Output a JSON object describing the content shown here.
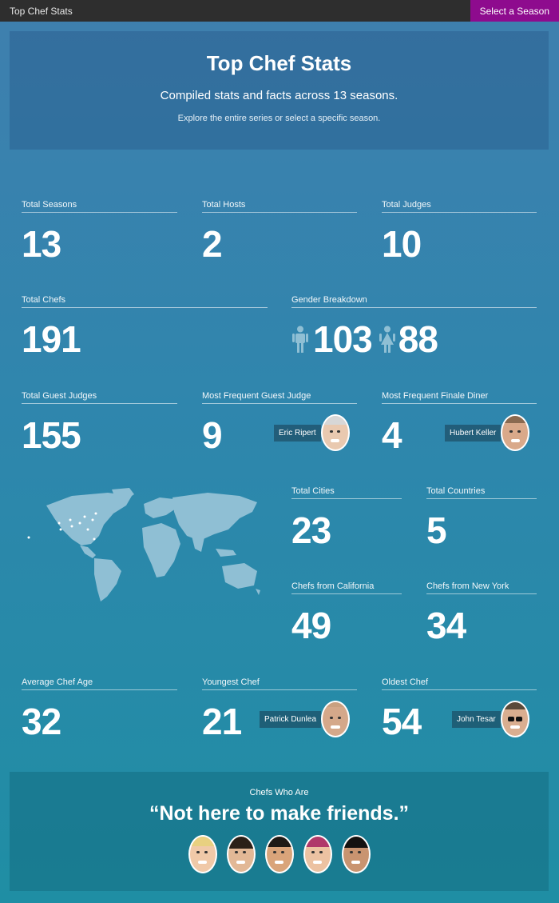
{
  "topbar": {
    "title": "Top Chef Stats",
    "season_button": "Select a Season"
  },
  "hero": {
    "title": "Top Chef Stats",
    "subtitle": "Compiled stats and facts across 13 seasons.",
    "description": "Explore the entire series or select a specific season."
  },
  "stats": {
    "total_seasons": {
      "label": "Total Seasons",
      "value": "13"
    },
    "total_hosts": {
      "label": "Total Hosts",
      "value": "2"
    },
    "total_judges": {
      "label": "Total Judges",
      "value": "10"
    },
    "total_chefs": {
      "label": "Total Chefs",
      "value": "191"
    },
    "gender": {
      "label": "Gender Breakdown",
      "male": "103",
      "female": "88"
    },
    "guest_judges": {
      "label": "Total Guest Judges",
      "value": "155"
    },
    "frequent_guest_judge": {
      "label": "Most Frequent Guest Judge",
      "value": "9",
      "name": "Eric Ripert"
    },
    "frequent_finale_diner": {
      "label": "Most Frequent Finale Diner",
      "value": "4",
      "name": "Hubert Keller"
    },
    "total_cities": {
      "label": "Total Cities",
      "value": "23"
    },
    "total_countries": {
      "label": "Total Countries",
      "value": "5"
    },
    "chefs_california": {
      "label": "Chefs from California",
      "value": "49"
    },
    "chefs_new_york": {
      "label": "Chefs from New York",
      "value": "34"
    },
    "average_age": {
      "label": "Average Chef Age",
      "value": "32"
    },
    "youngest_chef": {
      "label": "Youngest Chef",
      "value": "21",
      "name": "Patrick Dunlea"
    },
    "oldest_chef": {
      "label": "Oldest Chef",
      "value": "54",
      "name": "John Tesar"
    }
  },
  "friends": {
    "heading": "Chefs Who Are",
    "quote": "“Not here to make friends.”"
  },
  "colors": {
    "accent": "#8e0b8e",
    "topbar": "#2e2e2e",
    "map": "#8fbfd4"
  }
}
